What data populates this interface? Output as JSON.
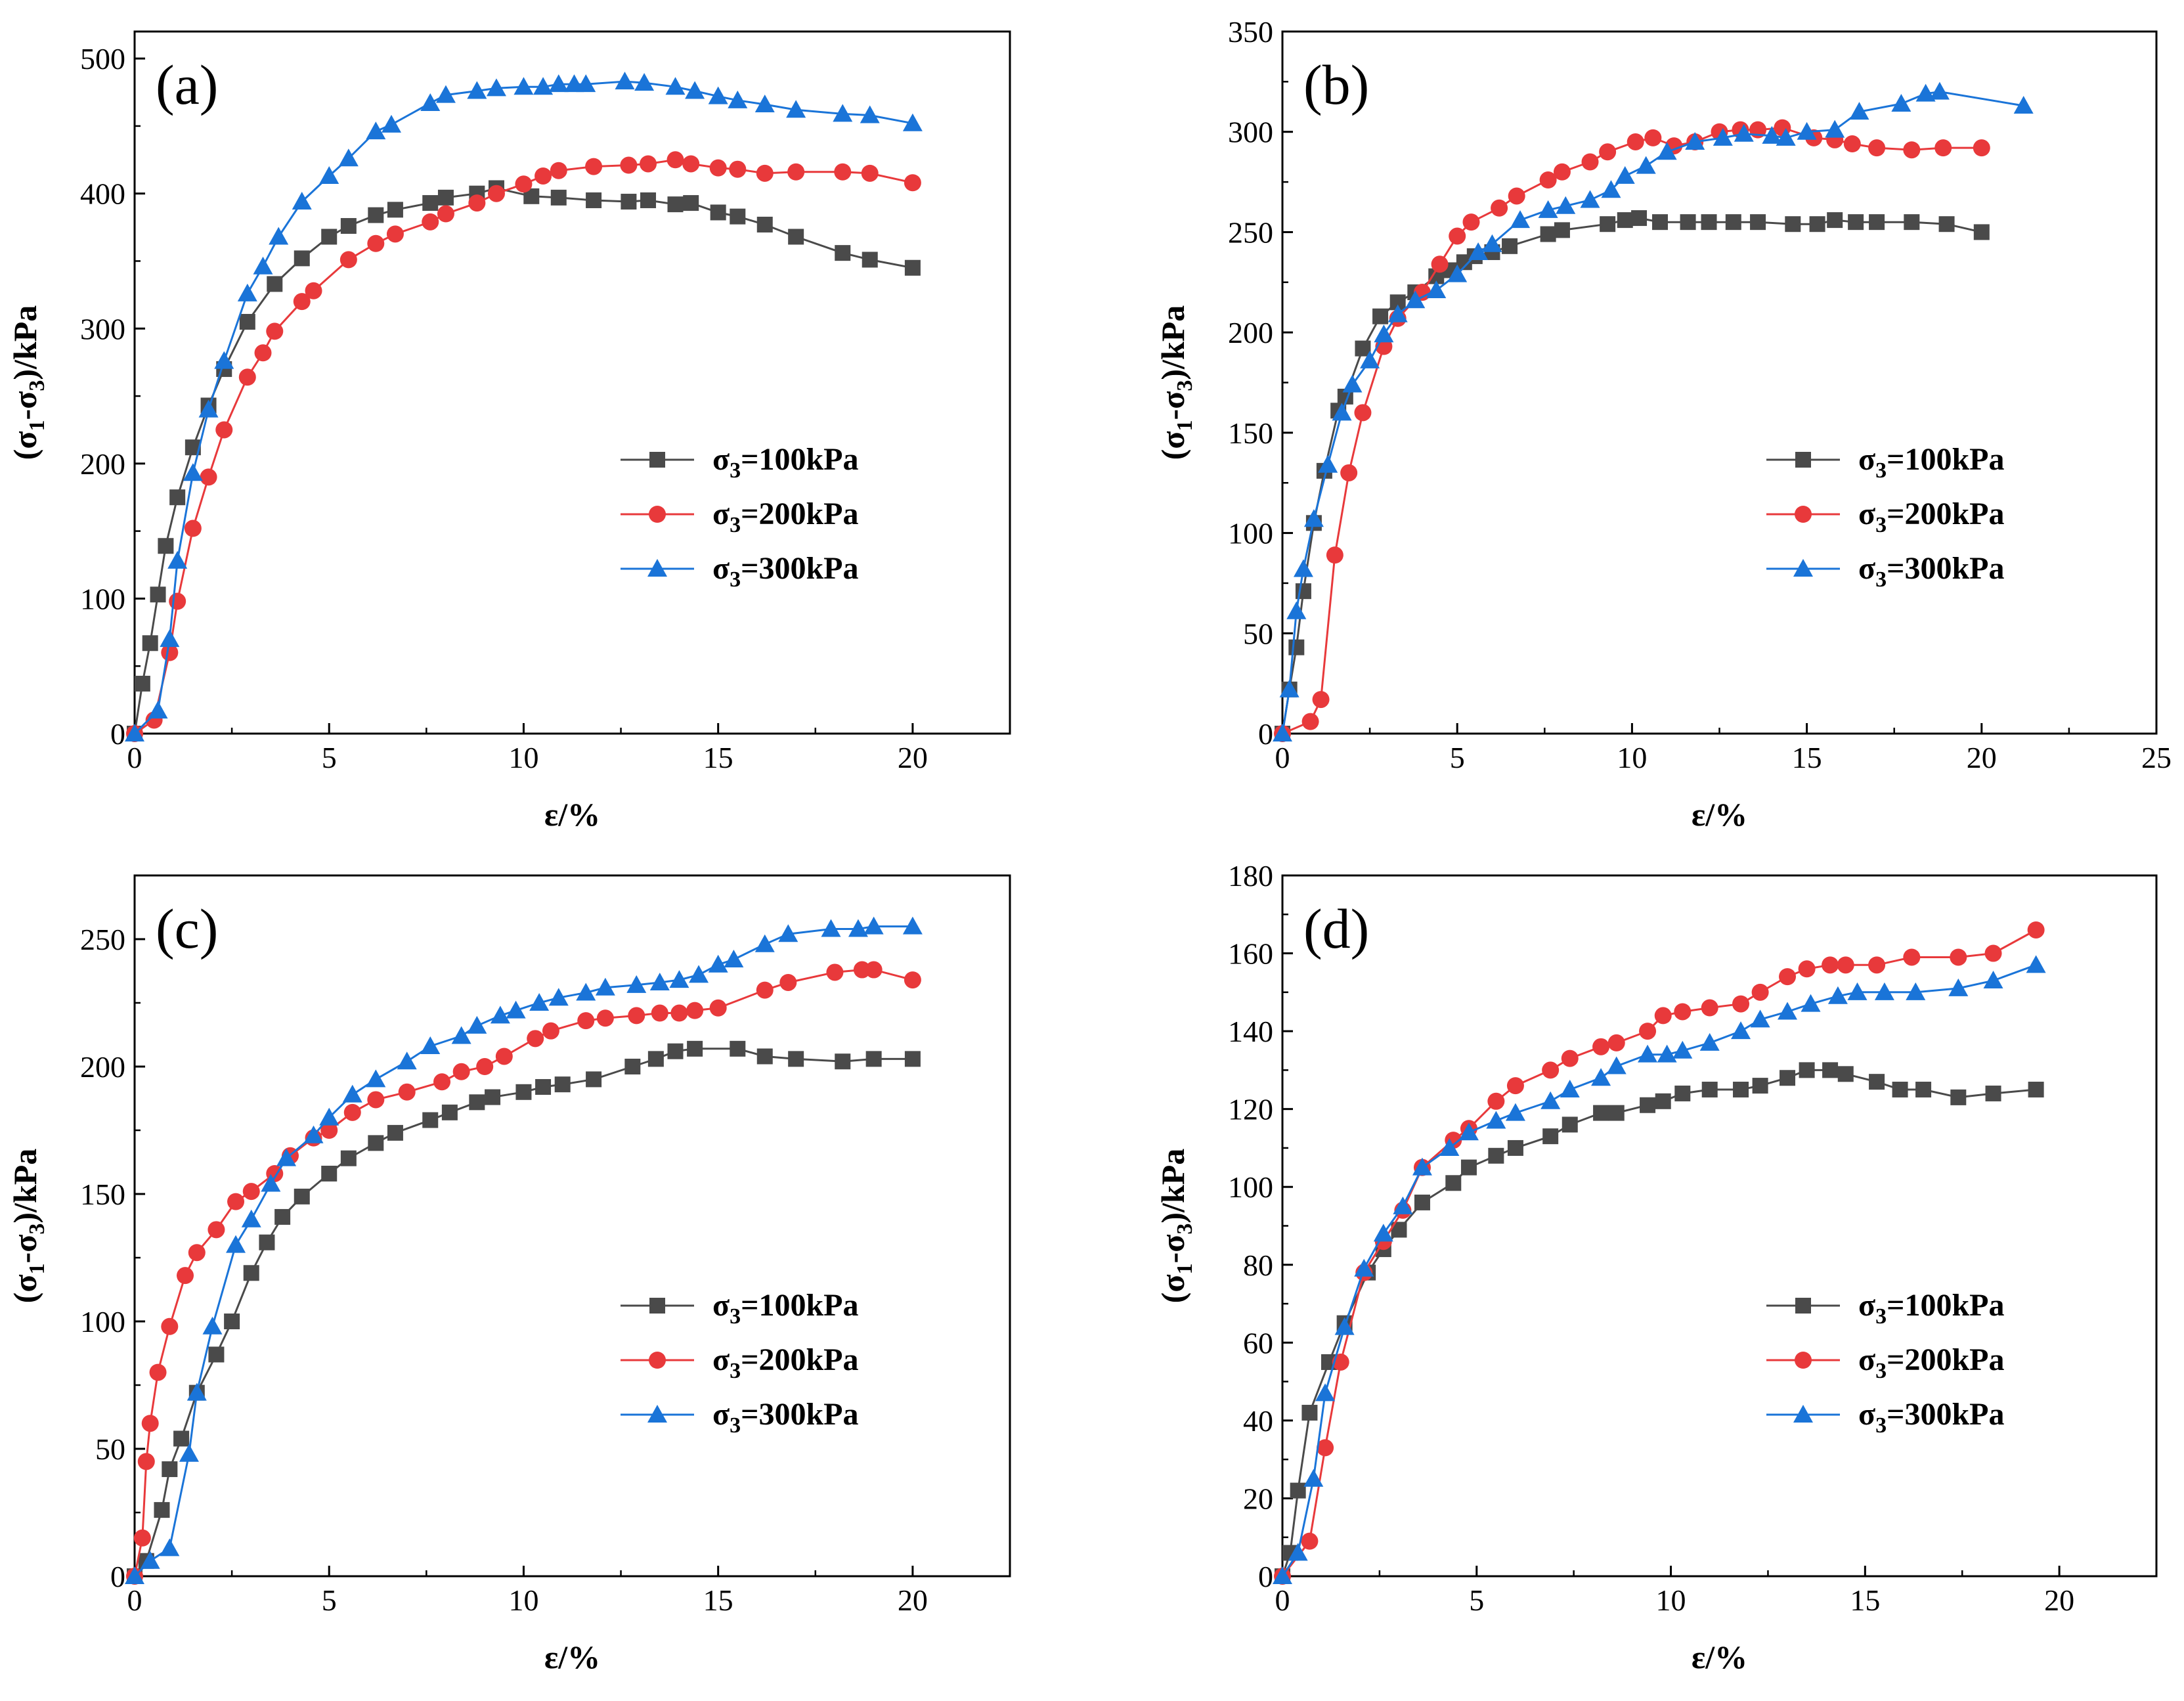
{
  "chart_data": [
    {
      "panel": "(a)",
      "type": "line",
      "xlabel": "ε/%",
      "ylabel": "(σ1-σ3)/kPa",
      "xlim": [
        0,
        22.5
      ],
      "ylim": [
        0,
        520
      ],
      "xticks": [
        0,
        5,
        10,
        15,
        20
      ],
      "yticks": [
        0,
        100,
        200,
        300,
        400,
        500
      ],
      "legend": [
        "σ3=100kPa",
        "σ3=200kPa",
        "σ3=300kPa"
      ],
      "series": [
        {
          "name": "σ3=100kPa",
          "color": "#4a4a4a",
          "marker": "square",
          "x": [
            0,
            0.2,
            0.4,
            0.6,
            0.8,
            1.1,
            1.5,
            1.9,
            2.3,
            2.9,
            3.6,
            4.3,
            5.0,
            5.5,
            6.2,
            6.7,
            7.6,
            8.0,
            8.8,
            9.3,
            10.2,
            10.9,
            11.8,
            12.7,
            13.2,
            13.9,
            14.3,
            15.0,
            15.5,
            16.2,
            17.0,
            18.2,
            18.9,
            20.0
          ],
          "y": [
            0,
            37,
            67,
            103,
            139,
            175,
            212,
            243,
            270,
            305,
            333,
            352,
            368,
            376,
            384,
            388,
            393,
            397,
            400,
            404,
            398,
            397,
            395,
            394,
            395,
            392,
            393,
            386,
            383,
            377,
            368,
            356,
            351,
            345
          ]
        },
        {
          "name": "σ3=200kPa",
          "color": "#e8393b",
          "marker": "circle",
          "x": [
            0,
            0.5,
            0.9,
            1.1,
            1.5,
            1.9,
            2.3,
            2.9,
            3.3,
            3.6,
            4.3,
            4.6,
            5.5,
            6.2,
            6.7,
            7.6,
            8.0,
            8.8,
            9.3,
            10.0,
            10.5,
            10.9,
            11.8,
            12.7,
            13.2,
            13.9,
            14.3,
            15.0,
            15.5,
            16.2,
            17.0,
            18.2,
            18.9,
            20.0
          ],
          "y": [
            0,
            10,
            60,
            98,
            152,
            190,
            225,
            264,
            282,
            298,
            320,
            328,
            351,
            363,
            370,
            379,
            385,
            393,
            400,
            407,
            413,
            417,
            420,
            421,
            422,
            425,
            422,
            419,
            418,
            415,
            416,
            416,
            415,
            408
          ]
        },
        {
          "name": "σ3=300kPa",
          "color": "#1a74d8",
          "marker": "triangle",
          "x": [
            0,
            0.6,
            0.9,
            1.1,
            1.5,
            1.9,
            2.3,
            2.9,
            3.3,
            3.7,
            4.3,
            5.0,
            5.5,
            6.2,
            6.6,
            7.6,
            8.0,
            8.8,
            9.3,
            10.0,
            10.5,
            10.9,
            11.3,
            11.6,
            12.6,
            13.1,
            13.9,
            14.4,
            15.0,
            15.5,
            16.2,
            17.0,
            18.2,
            18.9,
            20.0
          ],
          "y": [
            0,
            17,
            70,
            128,
            193,
            240,
            276,
            326,
            346,
            368,
            394,
            413,
            426,
            446,
            451,
            467,
            473,
            476,
            478,
            479,
            479,
            481,
            481,
            481,
            483,
            482,
            479,
            476,
            472,
            469,
            466,
            462,
            459,
            458,
            452
          ]
        }
      ]
    },
    {
      "panel": "(b)",
      "type": "line",
      "xlabel": "ε/%",
      "ylabel": "(σ1-σ3)/kPa",
      "xlim": [
        0,
        25
      ],
      "ylim": [
        0,
        350
      ],
      "xticks": [
        0,
        5,
        10,
        15,
        20,
        25
      ],
      "yticks": [
        0,
        50,
        100,
        150,
        200,
        250,
        300,
        350
      ],
      "legend": [
        "σ3=100kPa",
        "σ3=200kPa",
        "σ3=300kPa"
      ],
      "series": [
        {
          "name": "σ3=100kPa",
          "color": "#4a4a4a",
          "marker": "square",
          "x": [
            0,
            0.2,
            0.4,
            0.6,
            0.9,
            1.2,
            1.6,
            1.8,
            2.3,
            2.8,
            3.3,
            3.8,
            4.4,
            4.8,
            5.2,
            5.5,
            6.0,
            6.5,
            7.6,
            8.0,
            9.3,
            9.8,
            10.2,
            10.8,
            11.6,
            12.2,
            12.9,
            13.6,
            14.6,
            15.3,
            15.8,
            16.4,
            17.0,
            18.0,
            19.0,
            20.0
          ],
          "y": [
            0,
            22,
            43,
            71,
            105,
            131,
            161,
            168,
            192,
            208,
            215,
            220,
            228,
            231,
            235,
            238,
            240,
            243,
            249,
            251,
            254,
            256,
            257,
            255,
            255,
            255,
            255,
            255,
            254,
            254,
            256,
            255,
            255,
            255,
            254,
            250
          ]
        },
        {
          "name": "σ3=200kPa",
          "color": "#e8393b",
          "marker": "circle",
          "x": [
            0,
            0.8,
            1.1,
            1.5,
            1.9,
            2.3,
            2.9,
            3.3,
            4.0,
            4.5,
            5.0,
            5.4,
            6.2,
            6.7,
            7.6,
            8.0,
            8.8,
            9.3,
            10.1,
            10.6,
            11.2,
            11.8,
            12.5,
            13.1,
            13.6,
            14.3,
            15.2,
            15.8,
            16.3,
            17.0,
            18.0,
            18.9,
            20.0
          ],
          "y": [
            0,
            6,
            17,
            89,
            130,
            160,
            193,
            207,
            220,
            234,
            248,
            255,
            262,
            268,
            276,
            280,
            285,
            290,
            295,
            297,
            293,
            295,
            300,
            301,
            301,
            302,
            297,
            296,
            294,
            292,
            291,
            292,
            292
          ]
        },
        {
          "name": "σ3=300kPa",
          "color": "#1a74d8",
          "marker": "triangle",
          "x": [
            0,
            0.2,
            0.4,
            0.6,
            0.9,
            1.3,
            1.7,
            2.0,
            2.5,
            2.9,
            3.3,
            3.8,
            4.4,
            5.0,
            5.6,
            6.0,
            6.8,
            7.6,
            8.1,
            8.8,
            9.4,
            9.8,
            10.4,
            11.0,
            11.8,
            12.6,
            13.2,
            14.0,
            14.4,
            15.0,
            15.8,
            16.5,
            17.7,
            18.4,
            18.8,
            21.2
          ],
          "y": [
            0,
            22,
            61,
            82,
            107,
            134,
            160,
            174,
            186,
            199,
            209,
            216,
            221,
            229,
            240,
            244,
            256,
            261,
            263,
            266,
            271,
            278,
            283,
            290,
            295,
            297,
            299,
            298,
            297,
            300,
            301,
            310,
            314,
            319,
            320,
            313
          ]
        }
      ]
    },
    {
      "panel": "(c)",
      "type": "line",
      "xlabel": "ε/%",
      "ylabel": "(σ1-σ3)/kPa",
      "xlim": [
        0,
        22.5
      ],
      "ylim": [
        0,
        275
      ],
      "xticks": [
        0,
        5,
        10,
        15,
        20
      ],
      "yticks": [
        0,
        50,
        100,
        150,
        200,
        250
      ],
      "legend": [
        "σ3=100kPa",
        "σ3=200kPa",
        "σ3=300kPa"
      ],
      "series": [
        {
          "name": "σ3=100kPa",
          "color": "#4a4a4a",
          "marker": "square",
          "x": [
            0,
            0.3,
            0.7,
            0.9,
            1.2,
            1.6,
            2.1,
            2.5,
            3.0,
            3.4,
            3.8,
            4.3,
            5.0,
            5.5,
            6.2,
            6.7,
            7.6,
            8.1,
            8.8,
            9.2,
            10.0,
            10.5,
            11.0,
            11.8,
            12.8,
            13.4,
            13.9,
            14.4,
            15.5,
            16.2,
            17.0,
            18.2,
            19.0,
            20.0
          ],
          "y": [
            0,
            6,
            26,
            42,
            54,
            72,
            87,
            100,
            119,
            131,
            141,
            149,
            158,
            164,
            170,
            174,
            179,
            182,
            186,
            188,
            190,
            192,
            193,
            195,
            200,
            203,
            206,
            207,
            207,
            204,
            203,
            202,
            203,
            203
          ]
        },
        {
          "name": "σ3=200kPa",
          "color": "#e8393b",
          "marker": "circle",
          "x": [
            0,
            0.2,
            0.3,
            0.4,
            0.6,
            0.9,
            1.3,
            1.6,
            2.1,
            2.6,
            3.0,
            3.6,
            4.0,
            4.6,
            5.0,
            5.6,
            6.2,
            7.0,
            7.9,
            8.4,
            9.0,
            9.5,
            10.3,
            10.7,
            11.6,
            12.1,
            12.9,
            13.5,
            14.0,
            14.4,
            15.0,
            16.2,
            16.8,
            18.0,
            18.7,
            19.0,
            20.0
          ],
          "y": [
            0,
            15,
            45,
            60,
            80,
            98,
            118,
            127,
            136,
            147,
            151,
            158,
            165,
            172,
            175,
            182,
            187,
            190,
            194,
            198,
            200,
            204,
            211,
            214,
            218,
            219,
            220,
            221,
            221,
            222,
            223,
            230,
            233,
            237,
            238,
            238,
            234
          ]
        },
        {
          "name": "σ3=300kPa",
          "color": "#1a74d8",
          "marker": "triangle",
          "x": [
            0,
            0.4,
            0.9,
            1.4,
            1.6,
            2.0,
            2.6,
            3.0,
            3.5,
            3.9,
            4.6,
            5.0,
            5.6,
            6.2,
            7.0,
            7.6,
            8.4,
            8.8,
            9.4,
            9.8,
            10.4,
            10.9,
            11.6,
            12.1,
            12.9,
            13.5,
            14.0,
            14.5,
            15.0,
            15.4,
            16.2,
            16.8,
            17.9,
            18.6,
            19.0,
            20.0
          ],
          "y": [
            0,
            6,
            11,
            48,
            72,
            98,
            130,
            140,
            154,
            164,
            173,
            180,
            189,
            195,
            202,
            208,
            212,
            216,
            220,
            222,
            225,
            227,
            229,
            231,
            232,
            233,
            234,
            236,
            240,
            242,
            248,
            252,
            254,
            254,
            255,
            255
          ]
        }
      ]
    },
    {
      "panel": "(d)",
      "type": "line",
      "xlabel": "ε/%",
      "ylabel": "(σ1-σ3)/kPa",
      "xlim": [
        0,
        22.5
      ],
      "ylim": [
        0,
        180
      ],
      "xticks": [
        0,
        5,
        10,
        15,
        20
      ],
      "yticks": [
        0,
        20,
        40,
        60,
        80,
        100,
        120,
        140,
        160,
        180
      ],
      "legend": [
        "σ3=100kPa",
        "σ3=200kPa",
        "σ3=300kPa"
      ],
      "series": [
        {
          "name": "σ3=100kPa",
          "color": "#4a4a4a",
          "marker": "square",
          "x": [
            0,
            0.2,
            0.4,
            0.7,
            1.2,
            1.6,
            2.2,
            2.6,
            3.0,
            3.6,
            4.4,
            4.8,
            5.5,
            6.0,
            6.9,
            7.4,
            8.2,
            8.6,
            9.4,
            9.8,
            10.3,
            11.0,
            11.8,
            12.3,
            13.0,
            13.5,
            14.1,
            14.5,
            15.3,
            15.9,
            16.5,
            17.4,
            18.3,
            19.4
          ],
          "y": [
            0,
            6,
            22,
            42,
            55,
            65,
            78,
            84,
            89,
            96,
            101,
            105,
            108,
            110,
            113,
            116,
            119,
            119,
            121,
            122,
            124,
            125,
            125,
            126,
            128,
            130,
            130,
            129,
            127,
            125,
            125,
            123,
            124,
            125
          ]
        },
        {
          "name": "σ3=200kPa",
          "color": "#e8393b",
          "marker": "circle",
          "x": [
            0,
            0.7,
            1.1,
            1.5,
            2.1,
            2.6,
            3.1,
            3.6,
            4.4,
            4.8,
            5.5,
            6.0,
            6.9,
            7.4,
            8.2,
            8.6,
            9.4,
            9.8,
            10.3,
            11.0,
            11.8,
            12.3,
            13.0,
            13.5,
            14.1,
            14.5,
            15.3,
            16.2,
            17.4,
            18.3,
            19.4
          ],
          "y": [
            0,
            9,
            33,
            55,
            78,
            86,
            94,
            105,
            112,
            115,
            122,
            126,
            130,
            133,
            136,
            137,
            140,
            144,
            145,
            146,
            147,
            150,
            154,
            156,
            157,
            157,
            157,
            159,
            159,
            160,
            166
          ]
        },
        {
          "name": "σ3=300kPa",
          "color": "#1a74d8",
          "marker": "triangle",
          "x": [
            0,
            0.4,
            0.8,
            1.1,
            1.6,
            2.1,
            2.6,
            3.1,
            3.6,
            4.3,
            4.8,
            5.5,
            6.0,
            6.9,
            7.4,
            8.2,
            8.6,
            9.4,
            9.9,
            10.3,
            11.0,
            11.8,
            12.3,
            13.0,
            13.6,
            14.3,
            14.8,
            15.5,
            16.3,
            17.4,
            18.3,
            19.4
          ],
          "y": [
            0,
            6,
            25,
            47,
            64,
            79,
            88,
            95,
            105,
            110,
            114,
            117,
            119,
            122,
            125,
            128,
            131,
            134,
            134,
            135,
            137,
            140,
            143,
            145,
            147,
            149,
            150,
            150,
            150,
            151,
            153,
            157
          ]
        }
      ]
    }
  ]
}
